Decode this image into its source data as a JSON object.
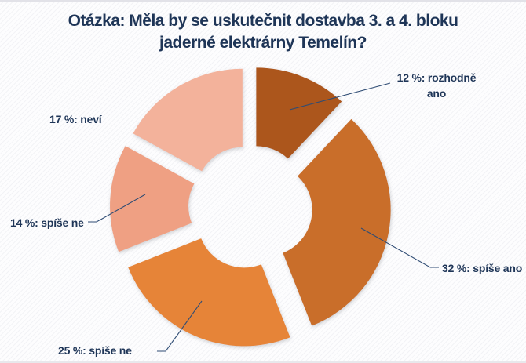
{
  "title": {
    "line1": "Otázka: Měla by se uskutečnit dostavba 3. a 4. bloku",
    "line2": "jaderné elektrárny Temelín?"
  },
  "chart_data": {
    "type": "pie",
    "subtype": "exploded-doughnut",
    "title": "Otázka: Měla by se uskutečnit dostavba 3. a 4. bloku jaderné elektrárny Temelín?",
    "unit": "%",
    "direction": "clockwise",
    "start_angle_deg": 0,
    "legend": "none",
    "label_color": "#1e3557",
    "segments": [
      {
        "label": "rozhodně ano",
        "value": 12,
        "color": "#AC571B",
        "callout": "12 %: rozhodně ano"
      },
      {
        "label": "spíše ano",
        "value": 32,
        "color": "#C96E2B",
        "callout": "32 %: spíše ano"
      },
      {
        "label": "spíše ne",
        "value": 25,
        "color": "#E68438",
        "callout": "25 %: spíše ne"
      },
      {
        "label": "spíše ne",
        "value": 14,
        "color": "#EFA083",
        "callout": "14 %: spíše ne"
      },
      {
        "label": "neví",
        "value": 17,
        "color": "#F3B29B",
        "callout": "17 %: neví"
      }
    ]
  }
}
